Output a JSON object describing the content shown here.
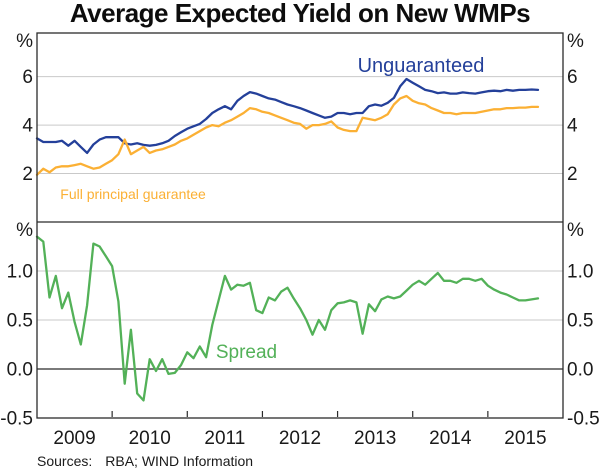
{
  "title": "Average Expected Yield on New WMPs",
  "footer": {
    "label": "Sources:",
    "text": "RBA; WIND Information"
  },
  "chart_data": {
    "type": "line",
    "title": "Average Expected Yield on New WMPs",
    "x_unit": "monthly",
    "x_start": "2009-01",
    "x_end": "2015-09",
    "xlim": [
      2009,
      2016
    ],
    "xticks": [
      2010,
      2011,
      2012,
      2013,
      2014,
      2015
    ],
    "xlabels": [
      {
        "label": "2009",
        "center": 2009.5
      },
      {
        "label": "2010",
        "center": 2010.5
      },
      {
        "label": "2011",
        "center": 2011.5
      },
      {
        "label": "2012",
        "center": 2012.5
      },
      {
        "label": "2013",
        "center": 2013.5
      },
      {
        "label": "2014",
        "center": 2014.5
      },
      {
        "label": "2015",
        "center": 2015.5
      }
    ],
    "panels": [
      {
        "id": "yields",
        "unit": "%",
        "ylim": [
          0,
          7.8
        ],
        "gridlines": [
          {
            "value": 2
          },
          {
            "value": 4
          },
          {
            "value": 6
          }
        ],
        "labels": [
          {
            "value": 2,
            "label": "2"
          },
          {
            "value": 4,
            "label": "4"
          },
          {
            "value": 6,
            "label": "6"
          }
        ],
        "series": [
          {
            "name": "Unguaranteed",
            "color": "#24409a",
            "values": [
              3.45,
              3.3,
              3.3,
              3.3,
              3.35,
              3.15,
              3.35,
              3.1,
              2.85,
              3.2,
              3.4,
              3.5,
              3.5,
              3.5,
              3.25,
              3.2,
              3.25,
              3.18,
              3.15,
              3.18,
              3.25,
              3.35,
              3.55,
              3.7,
              3.85,
              3.95,
              4.05,
              4.25,
              4.5,
              4.65,
              4.78,
              4.65,
              5.0,
              5.2,
              5.36,
              5.3,
              5.2,
              5.1,
              5.05,
              4.95,
              4.85,
              4.78,
              4.7,
              4.6,
              4.5,
              4.4,
              4.3,
              4.35,
              4.5,
              4.5,
              4.45,
              4.5,
              4.5,
              4.78,
              4.85,
              4.8,
              4.92,
              5.12,
              5.6,
              5.9,
              5.75,
              5.6,
              5.45,
              5.4,
              5.32,
              5.35,
              5.3,
              5.3,
              5.35,
              5.32,
              5.3,
              5.35,
              5.4,
              5.42,
              5.4,
              5.45,
              5.42,
              5.45,
              5.45,
              5.47,
              5.45
            ]
          },
          {
            "name": "Full principal guarantee",
            "color": "#fbb034",
            "values": [
              1.95,
              2.2,
              2.05,
              2.25,
              2.3,
              2.3,
              2.35,
              2.4,
              2.3,
              2.2,
              2.25,
              2.4,
              2.55,
              2.8,
              3.4,
              2.8,
              2.95,
              3.1,
              2.85,
              2.95,
              3.0,
              3.1,
              3.2,
              3.35,
              3.45,
              3.6,
              3.75,
              3.9,
              4.0,
              3.95,
              4.1,
              4.2,
              4.35,
              4.5,
              4.7,
              4.65,
              4.55,
              4.5,
              4.4,
              4.3,
              4.2,
              4.1,
              4.05,
              3.85,
              4.0,
              4.0,
              4.05,
              4.15,
              3.9,
              3.8,
              3.75,
              3.75,
              4.3,
              4.25,
              4.2,
              4.3,
              4.45,
              4.85,
              5.1,
              5.2,
              5.0,
              4.9,
              4.85,
              4.7,
              4.6,
              4.5,
              4.5,
              4.45,
              4.5,
              4.5,
              4.5,
              4.55,
              4.6,
              4.65,
              4.65,
              4.7,
              4.7,
              4.72,
              4.72,
              4.75,
              4.75
            ]
          }
        ],
        "annotations": [
          {
            "text": "Unguaranteed",
            "color": "#24409a",
            "anchor": "middle",
            "x": 2014.11,
            "y": 6.48,
            "size": 20
          },
          {
            "text": "Full principal guarantee",
            "color": "#fbb034",
            "anchor": "start",
            "x": 2009.31,
            "y": 1.16,
            "size": 14
          }
        ]
      },
      {
        "id": "spread",
        "unit": "%",
        "ylim": [
          -0.5,
          1.5
        ],
        "gridlines": [
          {
            "value": 0,
            "dark": true
          },
          {
            "value": 0.5
          },
          {
            "value": 1
          }
        ],
        "labels": [
          {
            "value": -0.5,
            "label": "-0.5"
          },
          {
            "value": 0,
            "label": "0.0"
          },
          {
            "value": 0.5,
            "label": "0.5"
          },
          {
            "value": 1,
            "label": "1.0"
          }
        ],
        "series": [
          {
            "name": "Spread",
            "color": "#53b158",
            "values": [
              1.35,
              1.3,
              0.73,
              0.95,
              0.62,
              0.78,
              0.48,
              0.25,
              0.65,
              1.28,
              1.25,
              1.15,
              1.05,
              0.69,
              -0.15,
              0.4,
              -0.25,
              -0.32,
              0.1,
              -0.02,
              0.1,
              -0.05,
              -0.04,
              0.04,
              0.17,
              0.11,
              0.23,
              0.12,
              0.45,
              0.7,
              0.95,
              0.81,
              0.86,
              0.85,
              0.88,
              0.6,
              0.57,
              0.73,
              0.7,
              0.79,
              0.83,
              0.72,
              0.62,
              0.5,
              0.35,
              0.5,
              0.4,
              0.6,
              0.67,
              0.68,
              0.7,
              0.68,
              0.36,
              0.66,
              0.59,
              0.71,
              0.74,
              0.72,
              0.74,
              0.8,
              0.86,
              0.9,
              0.86,
              0.92,
              0.98,
              0.9,
              0.9,
              0.88,
              0.92,
              0.92,
              0.9,
              0.92,
              0.85,
              0.81,
              0.78,
              0.76,
              0.73,
              0.7,
              0.7,
              0.71,
              0.72
            ]
          }
        ],
        "annotations": [
          {
            "text": "Spread",
            "color": "#53b158",
            "anchor": "start",
            "x": 2011.38,
            "y": 0.18,
            "size": 19
          }
        ]
      }
    ]
  }
}
